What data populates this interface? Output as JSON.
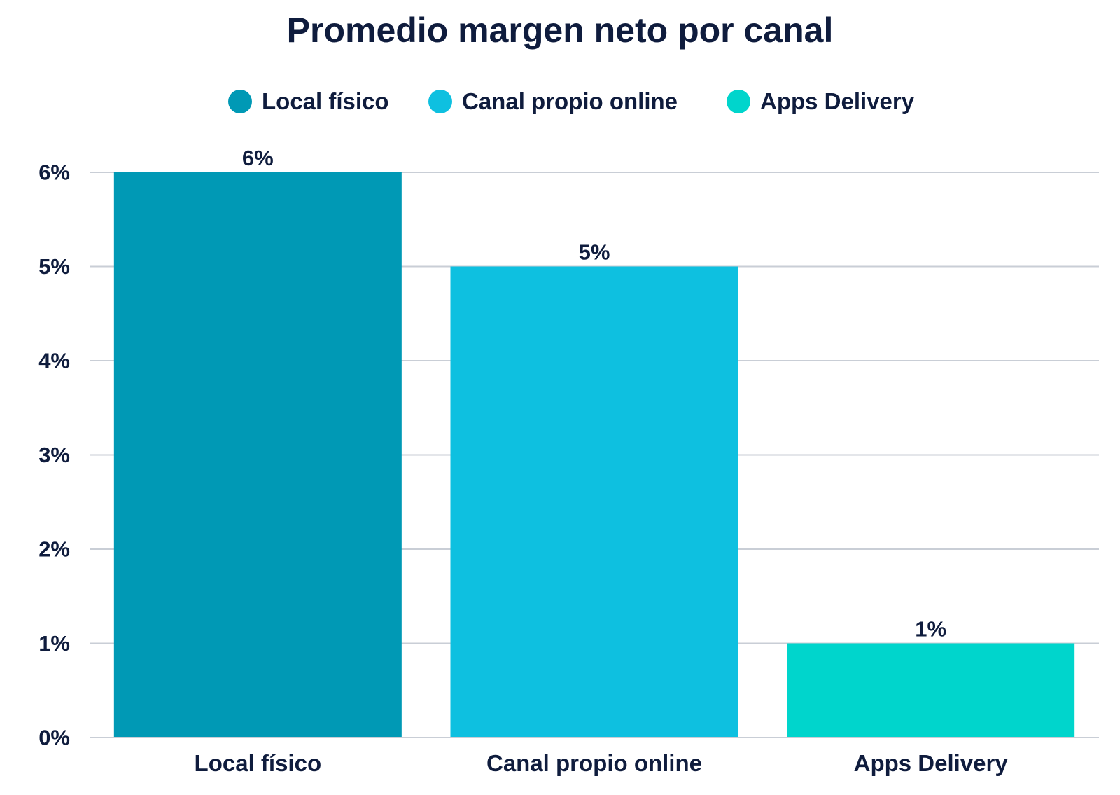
{
  "chart_data": {
    "type": "bar",
    "title": "Promedio margen neto por canal",
    "categories": [
      "Local físico",
      "Canal propio online",
      "Apps Delivery"
    ],
    "values": [
      6,
      5,
      1
    ],
    "data_labels": [
      "6%",
      "5%",
      "1%"
    ],
    "colors": [
      "#0099b5",
      "#0ec0e0",
      "#00d5cc"
    ],
    "legend": [
      {
        "label": "Local físico",
        "color": "#0099b5"
      },
      {
        "label": "Canal propio online",
        "color": "#0ec0e0"
      },
      {
        "label": "Apps Delivery",
        "color": "#00d5cc"
      }
    ],
    "legend_position": "top-center",
    "yticks": [
      "0%",
      "1%",
      "2%",
      "3%",
      "4%",
      "5%",
      "6%"
    ],
    "ylim": [
      0,
      6
    ],
    "xlabel": "",
    "ylabel": "",
    "grid": true
  }
}
